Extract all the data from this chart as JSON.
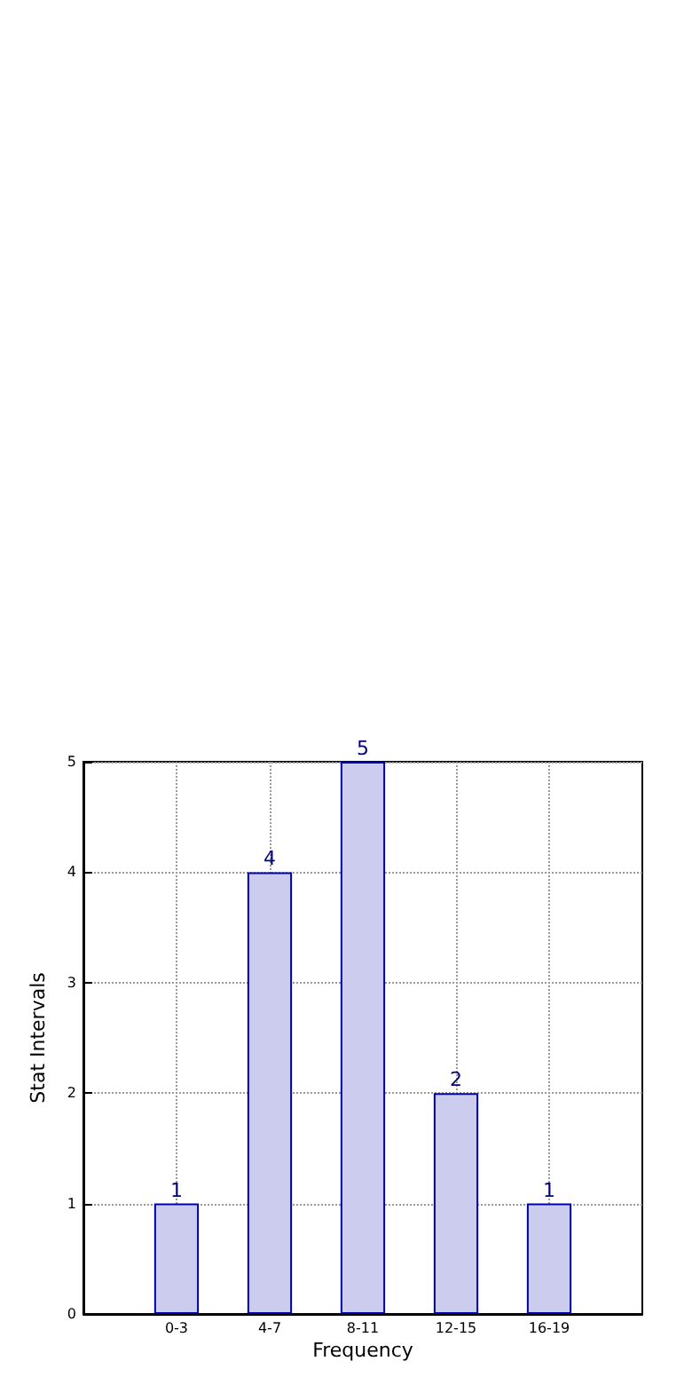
{
  "chart_data": {
    "type": "bar",
    "xlabel": "Frequency",
    "ylabel": "Stat Intervals",
    "categories": [
      "0-3",
      "4-7",
      "8-11",
      "12-15",
      "16-19"
    ],
    "values": [
      1,
      4,
      5,
      2,
      1
    ],
    "color": "#ccccee",
    "ylim": [
      0,
      5
    ],
    "yticks": [
      0,
      1,
      2,
      3,
      4,
      5
    ],
    "grid": true,
    "data_labels": true
  }
}
